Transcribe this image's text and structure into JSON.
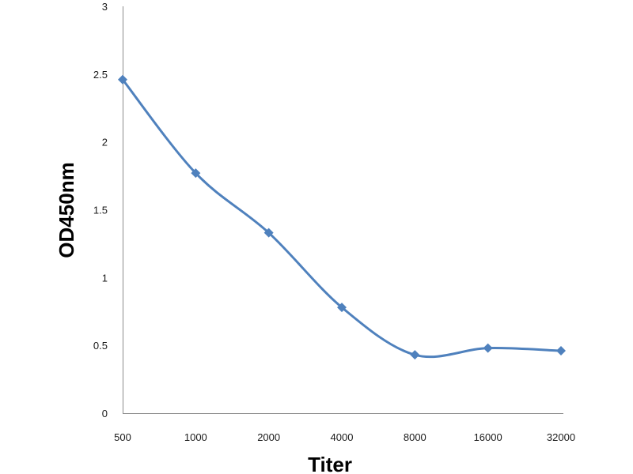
{
  "chart_data": {
    "type": "line",
    "title": "",
    "xlabel": "Titer",
    "ylabel": "OD450nm",
    "categories": [
      "500",
      "1000",
      "2000",
      "4000",
      "8000",
      "16000",
      "32000"
    ],
    "y_ticks": [
      "0",
      "0.5",
      "1",
      "1.5",
      "2",
      "2.5",
      "3"
    ],
    "ylim": [
      0,
      3
    ],
    "series": [
      {
        "values": [
          2.46,
          1.77,
          1.33,
          0.78,
          0.43,
          0.48,
          0.46
        ],
        "color": "#4f81bd",
        "marker": "diamond",
        "smooth": true
      }
    ],
    "grid": false,
    "legend": "none"
  }
}
